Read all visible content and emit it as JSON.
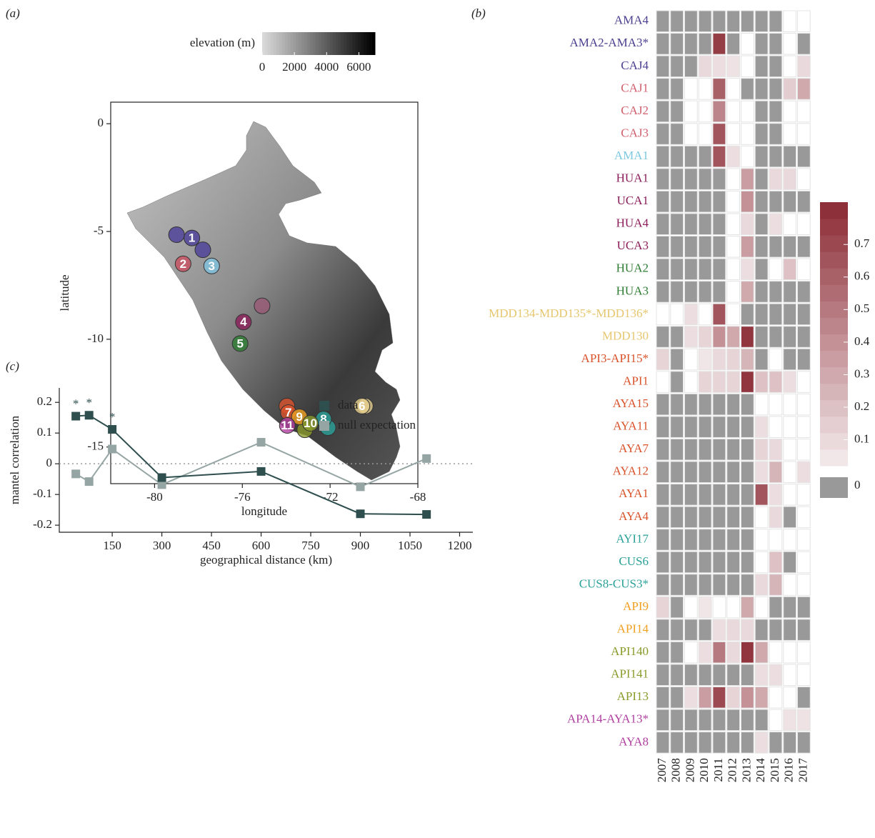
{
  "chart_data": [
    {
      "type": "map",
      "panel": "(a)",
      "xlabel": "longitude",
      "ylabel": "latitude",
      "xlim": [
        -82,
        -68
      ],
      "ylim": [
        -16.7,
        1
      ],
      "xticks": [
        -80,
        -76,
        -72,
        -68
      ],
      "yticks": [
        0,
        -5,
        -10,
        -15
      ],
      "colorbar": {
        "label": "elevation (m)",
        "lim": [
          0,
          7000
        ],
        "ticks": [
          0,
          2000,
          4000,
          6000
        ],
        "low_color": "#d9d9d9",
        "high_color": "#000000"
      },
      "points": [
        {
          "lon": -79.0,
          "lat": -5.15,
          "color": "#4b3f9a"
        },
        {
          "label": "1",
          "lon": -78.3,
          "lat": -5.3,
          "color": "#4b3f9a"
        },
        {
          "lon": -77.8,
          "lat": -5.85,
          "color": "#4b3f9a"
        },
        {
          "label": "2",
          "lon": -78.7,
          "lat": -6.5,
          "color": "#c9505f"
        },
        {
          "label": "3",
          "lon": -77.4,
          "lat": -6.6,
          "color": "#7ec3e0"
        },
        {
          "lon": -75.1,
          "lat": -8.45,
          "color": "#9a5a78"
        },
        {
          "label": "4",
          "lon": -75.95,
          "lat": -9.2,
          "color": "#8b1e5a"
        },
        {
          "label": "5",
          "lon": -76.1,
          "lat": -10.2,
          "color": "#2e7d32"
        },
        {
          "lon": -70.4,
          "lat": -13.1,
          "color": "#e6cf8e"
        },
        {
          "label": "6",
          "lon": -70.55,
          "lat": -13.1,
          "color": "#e6cf8e"
        },
        {
          "lon": -73.97,
          "lat": -13.1,
          "color": "#d9532b"
        },
        {
          "lon": -72.1,
          "lat": -14.1,
          "color": "#2aa198"
        },
        {
          "lon": -73.15,
          "lat": -14.2,
          "color": "#8a9a2a"
        },
        {
          "label": "7",
          "lon": -73.9,
          "lat": -13.4,
          "color": "#d9532b"
        },
        {
          "label": "8",
          "lon": -72.3,
          "lat": -13.7,
          "color": "#2aa198"
        },
        {
          "label": "9",
          "lon": -73.4,
          "lat": -13.6,
          "color": "#f0a020"
        },
        {
          "label": "10",
          "lon": -72.9,
          "lat": -13.9,
          "color": "#8a9a2a"
        },
        {
          "label": "11",
          "lon": -73.95,
          "lat": -14.0,
          "color": "#b040a0"
        }
      ]
    },
    {
      "type": "heatmap",
      "panel": "(b)",
      "columns": [
        "2007",
        "2008",
        "2009",
        "2010",
        "2011",
        "2012",
        "2013",
        "2014",
        "2015",
        "2016",
        "2017"
      ],
      "rows": [
        {
          "name": "AMA4",
          "color": "#4b3f8f"
        },
        {
          "name": "AMA2-AMA3*",
          "color": "#4b3f8f"
        },
        {
          "name": "CAJ4",
          "color": "#4b3f8f"
        },
        {
          "name": "CAJ1",
          "color": "#d0606e"
        },
        {
          "name": "CAJ2",
          "color": "#d0606e"
        },
        {
          "name": "CAJ3",
          "color": "#d0606e"
        },
        {
          "name": "AMA1",
          "color": "#7ec8e3"
        },
        {
          "name": "HUA1",
          "color": "#8b1e5a"
        },
        {
          "name": "UCA1",
          "color": "#8b1e5a"
        },
        {
          "name": "HUA4",
          "color": "#8b1e5a"
        },
        {
          "name": "UCA3",
          "color": "#8b1e5a"
        },
        {
          "name": "HUA2",
          "color": "#2e7d32"
        },
        {
          "name": "HUA3",
          "color": "#2e7d32"
        },
        {
          "name": "MDD134-MDD135*-MDD136*",
          "color": "#e6c66e"
        },
        {
          "name": "MDD130",
          "color": "#e6c66e"
        },
        {
          "name": "API3-API15*",
          "color": "#d9532b"
        },
        {
          "name": "API1",
          "color": "#d9532b"
        },
        {
          "name": "AYA15",
          "color": "#d9532b"
        },
        {
          "name": "AYA11",
          "color": "#d9532b"
        },
        {
          "name": "AYA7",
          "color": "#d9532b"
        },
        {
          "name": "AYA12",
          "color": "#d9532b"
        },
        {
          "name": "AYA1",
          "color": "#d9532b"
        },
        {
          "name": "AYA4",
          "color": "#d9532b"
        },
        {
          "name": "AYI17",
          "color": "#2aa198"
        },
        {
          "name": "CUS6",
          "color": "#2aa198"
        },
        {
          "name": "CUS8-CUS3*",
          "color": "#2aa198"
        },
        {
          "name": "API9",
          "color": "#f0a020"
        },
        {
          "name": "API14",
          "color": "#f0a020"
        },
        {
          "name": "API140",
          "color": "#8a9a2a"
        },
        {
          "name": "API141",
          "color": "#8a9a2a"
        },
        {
          "name": "API13",
          "color": "#8a9a2a"
        },
        {
          "name": "APA14-AYA13*",
          "color": "#b040a0"
        },
        {
          "name": "AYA8",
          "color": "#b040a0"
        }
      ],
      "values": [
        [
          0,
          0,
          0,
          0,
          0,
          0,
          0,
          0,
          0,
          null,
          null
        ],
        [
          0,
          0,
          0,
          0,
          0.75,
          0,
          null,
          0,
          0,
          null,
          0
        ],
        [
          0,
          0,
          0,
          0.1,
          0.08,
          0.06,
          null,
          0,
          0,
          null,
          0.1
        ],
        [
          0,
          0,
          null,
          null,
          0.6,
          null,
          0,
          0,
          0,
          0.15,
          0.3
        ],
        [
          0,
          0,
          null,
          null,
          0.45,
          null,
          null,
          0,
          0,
          null,
          null
        ],
        [
          0,
          0,
          null,
          null,
          0.65,
          null,
          null,
          0,
          0,
          null,
          null
        ],
        [
          0,
          0,
          0,
          0,
          0.65,
          0.08,
          null,
          0,
          0,
          0,
          0
        ],
        [
          0,
          0,
          0,
          0,
          0,
          null,
          0.35,
          0,
          0.1,
          0.1,
          null
        ],
        [
          0,
          0,
          0,
          0,
          0,
          null,
          0.4,
          0,
          0,
          0,
          0
        ],
        [
          0,
          0,
          0,
          0,
          0,
          null,
          0.1,
          0,
          0.08,
          null,
          null
        ],
        [
          0,
          0,
          0,
          0,
          0,
          null,
          0.35,
          0,
          0,
          0,
          0
        ],
        [
          0,
          0,
          0,
          0,
          0,
          null,
          0.08,
          0,
          null,
          0.2,
          null
        ],
        [
          0,
          0,
          0,
          0,
          0,
          null,
          0.3,
          0,
          0,
          0,
          0
        ],
        [
          null,
          null,
          0.08,
          null,
          0.65,
          null,
          0,
          0,
          0,
          0,
          0
        ],
        [
          0,
          0,
          0.08,
          0.12,
          0.4,
          0.3,
          0.78,
          0,
          0,
          0,
          0
        ],
        [
          0.12,
          0,
          null,
          0.05,
          0.1,
          0.12,
          0.25,
          0,
          null,
          0,
          0
        ],
        [
          null,
          0,
          null,
          0.12,
          0.12,
          0.12,
          0.78,
          0.2,
          0.2,
          0.08,
          null
        ],
        [
          0,
          0,
          0,
          0,
          0,
          0,
          0,
          null,
          null,
          null,
          null
        ],
        [
          0,
          0,
          0,
          0,
          0,
          0,
          0,
          0.08,
          null,
          null,
          null
        ],
        [
          0,
          0,
          0,
          0,
          0,
          0,
          0,
          0.12,
          0.1,
          null,
          null
        ],
        [
          0,
          0,
          0,
          0,
          0,
          0,
          0,
          0.08,
          0.25,
          null,
          0.08
        ],
        [
          0,
          0,
          0,
          0,
          0,
          0,
          0,
          0.65,
          0.08,
          null,
          null
        ],
        [
          0,
          0,
          0,
          0,
          0,
          0,
          0,
          null,
          0.1,
          0,
          null
        ],
        [
          0,
          0,
          0,
          0,
          0,
          0,
          0,
          null,
          null,
          null,
          null
        ],
        [
          0,
          0,
          0,
          0,
          0,
          0,
          0,
          null,
          0.2,
          0,
          null
        ],
        [
          0,
          0,
          0,
          0,
          0,
          0,
          0,
          0.1,
          0.25,
          null,
          null
        ],
        [
          0.12,
          0,
          null,
          0.05,
          null,
          null,
          0.3,
          null,
          0,
          0,
          0
        ],
        [
          0,
          0,
          0,
          0,
          0.08,
          0.1,
          0.1,
          0,
          0,
          0,
          0
        ],
        [
          0,
          0,
          null,
          0.08,
          0.5,
          0.1,
          0.78,
          0.3,
          null,
          null,
          null
        ],
        [
          0,
          0,
          0,
          0,
          0,
          0,
          0,
          0.08,
          0.08,
          null,
          null
        ],
        [
          0,
          0,
          0.08,
          0.35,
          0.7,
          0.12,
          0.4,
          0.3,
          null,
          null,
          0
        ],
        [
          0,
          0,
          0,
          0,
          0,
          0,
          0,
          0,
          null,
          0.06,
          0.06
        ],
        [
          0,
          0,
          0,
          0,
          0,
          0,
          0,
          0.08,
          0,
          0,
          0
        ]
      ],
      "colorbar": {
        "lim": [
          0.02,
          0.83
        ],
        "ticks": [
          0.1,
          0.2,
          0.3,
          0.4,
          0.5,
          0.6,
          0.7
        ],
        "steps": 16,
        "low_color": "#f4ecee",
        "high_color": "#8b2a33",
        "zero_value": 0,
        "zero_color": "#999999",
        "missing_color": "#ffffff"
      }
    },
    {
      "type": "line",
      "panel": "(c)",
      "xlabel": "geographical distance (km)",
      "ylabel": "mantel correlation",
      "x": [
        40,
        80,
        150,
        300,
        600,
        900,
        1100
      ],
      "xlim": [
        -10,
        1240
      ],
      "ylim": [
        -0.223,
        0.247
      ],
      "xticks": [
        150,
        300,
        450,
        600,
        750,
        900,
        1050,
        1200
      ],
      "yticks": [
        -0.2,
        -0.1,
        0,
        0.1,
        0.2
      ],
      "zero_line": true,
      "legend": "upper right",
      "series": [
        {
          "name": "data",
          "color": "#2f4f4f",
          "values": [
            0.155,
            0.158,
            0.112,
            -0.045,
            -0.025,
            -0.163,
            -0.165
          ],
          "significance": [
            "*",
            "*",
            "*",
            null,
            null,
            null,
            null
          ]
        },
        {
          "name": "null expectation",
          "color": "#95a5a3",
          "values": [
            -0.033,
            -0.058,
            0.048,
            -0.068,
            0.07,
            -0.075,
            0.017
          ]
        }
      ]
    }
  ]
}
